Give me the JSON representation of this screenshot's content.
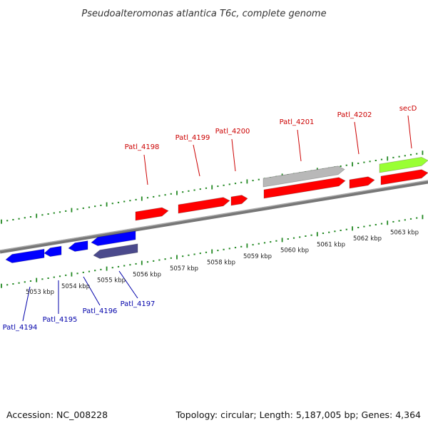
{
  "title": "Pseudoalteromonas atlantica T6c, complete genome",
  "accession": "Accession: NC_008228",
  "summary": "Topology: circular; Length: 5,187,005 bp; Genes: 4,364",
  "colors": {
    "forward_label": "#cc0000",
    "reverse_label": "#0000aa",
    "forward_gene": "#ff0000",
    "reverse_gene": "#0000ff",
    "reverse_rna": "#4b4a8c",
    "forward_other": "#b8b8b8",
    "forward_highlight": "#99ff33",
    "tick": "#228822",
    "backbone": "#888888"
  },
  "scale": {
    "unit": "kbp",
    "labels": [
      "5053 kbp",
      "5054 kbp",
      "5055 kbp",
      "5056 kbp",
      "5057 kbp",
      "5058 kbp",
      "5059 kbp",
      "5060 kbp",
      "5061 kbp",
      "5062 kbp",
      "5063 kbp"
    ]
  },
  "forward_labels": [
    "Patl_4198",
    "Patl_4199",
    "Patl_4200",
    "Patl_4201",
    "Patl_4202",
    "secD"
  ],
  "reverse_labels": [
    "Patl_4194",
    "Patl_4195",
    "Patl_4196",
    "Patl_4197"
  ]
}
